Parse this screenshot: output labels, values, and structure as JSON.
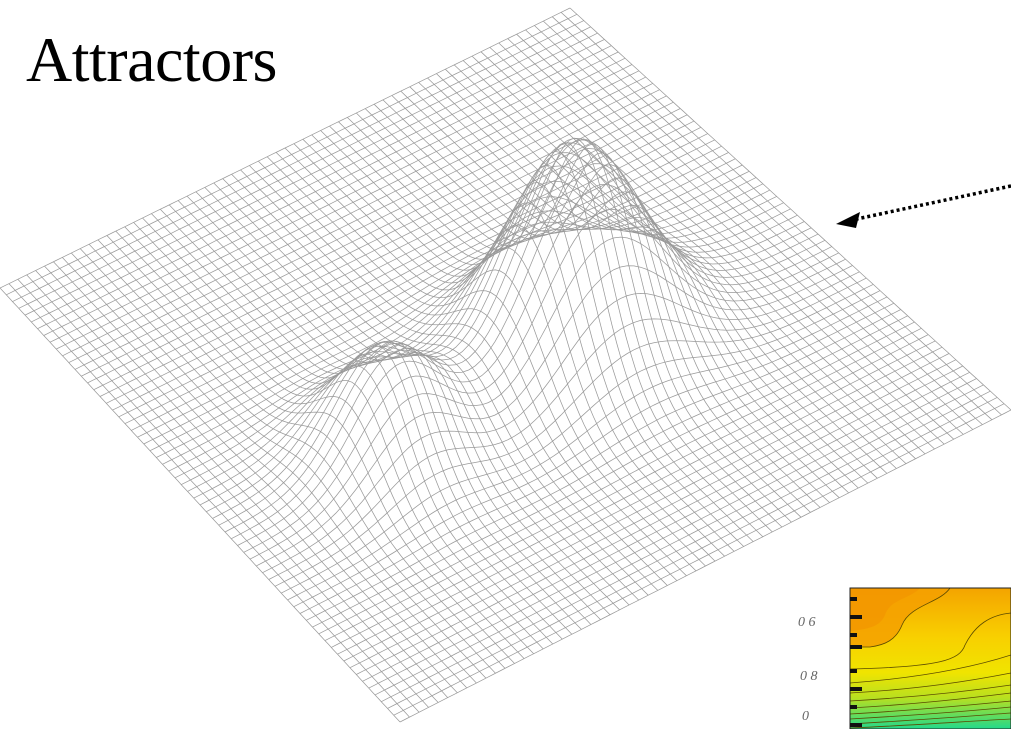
{
  "title": "Attractors",
  "colors": {
    "mesh": "#9a9a9a",
    "mesh_dark": "#3a3a3a",
    "arrow": "#000000",
    "contour_orange": "#f3a000",
    "contour_yellow": "#f8e800",
    "contour_green": "#1fd98a",
    "contour_line": "#5a4a00"
  },
  "inset": {
    "tick_labels": [
      "0  6",
      "0  8",
      "0"
    ]
  }
}
